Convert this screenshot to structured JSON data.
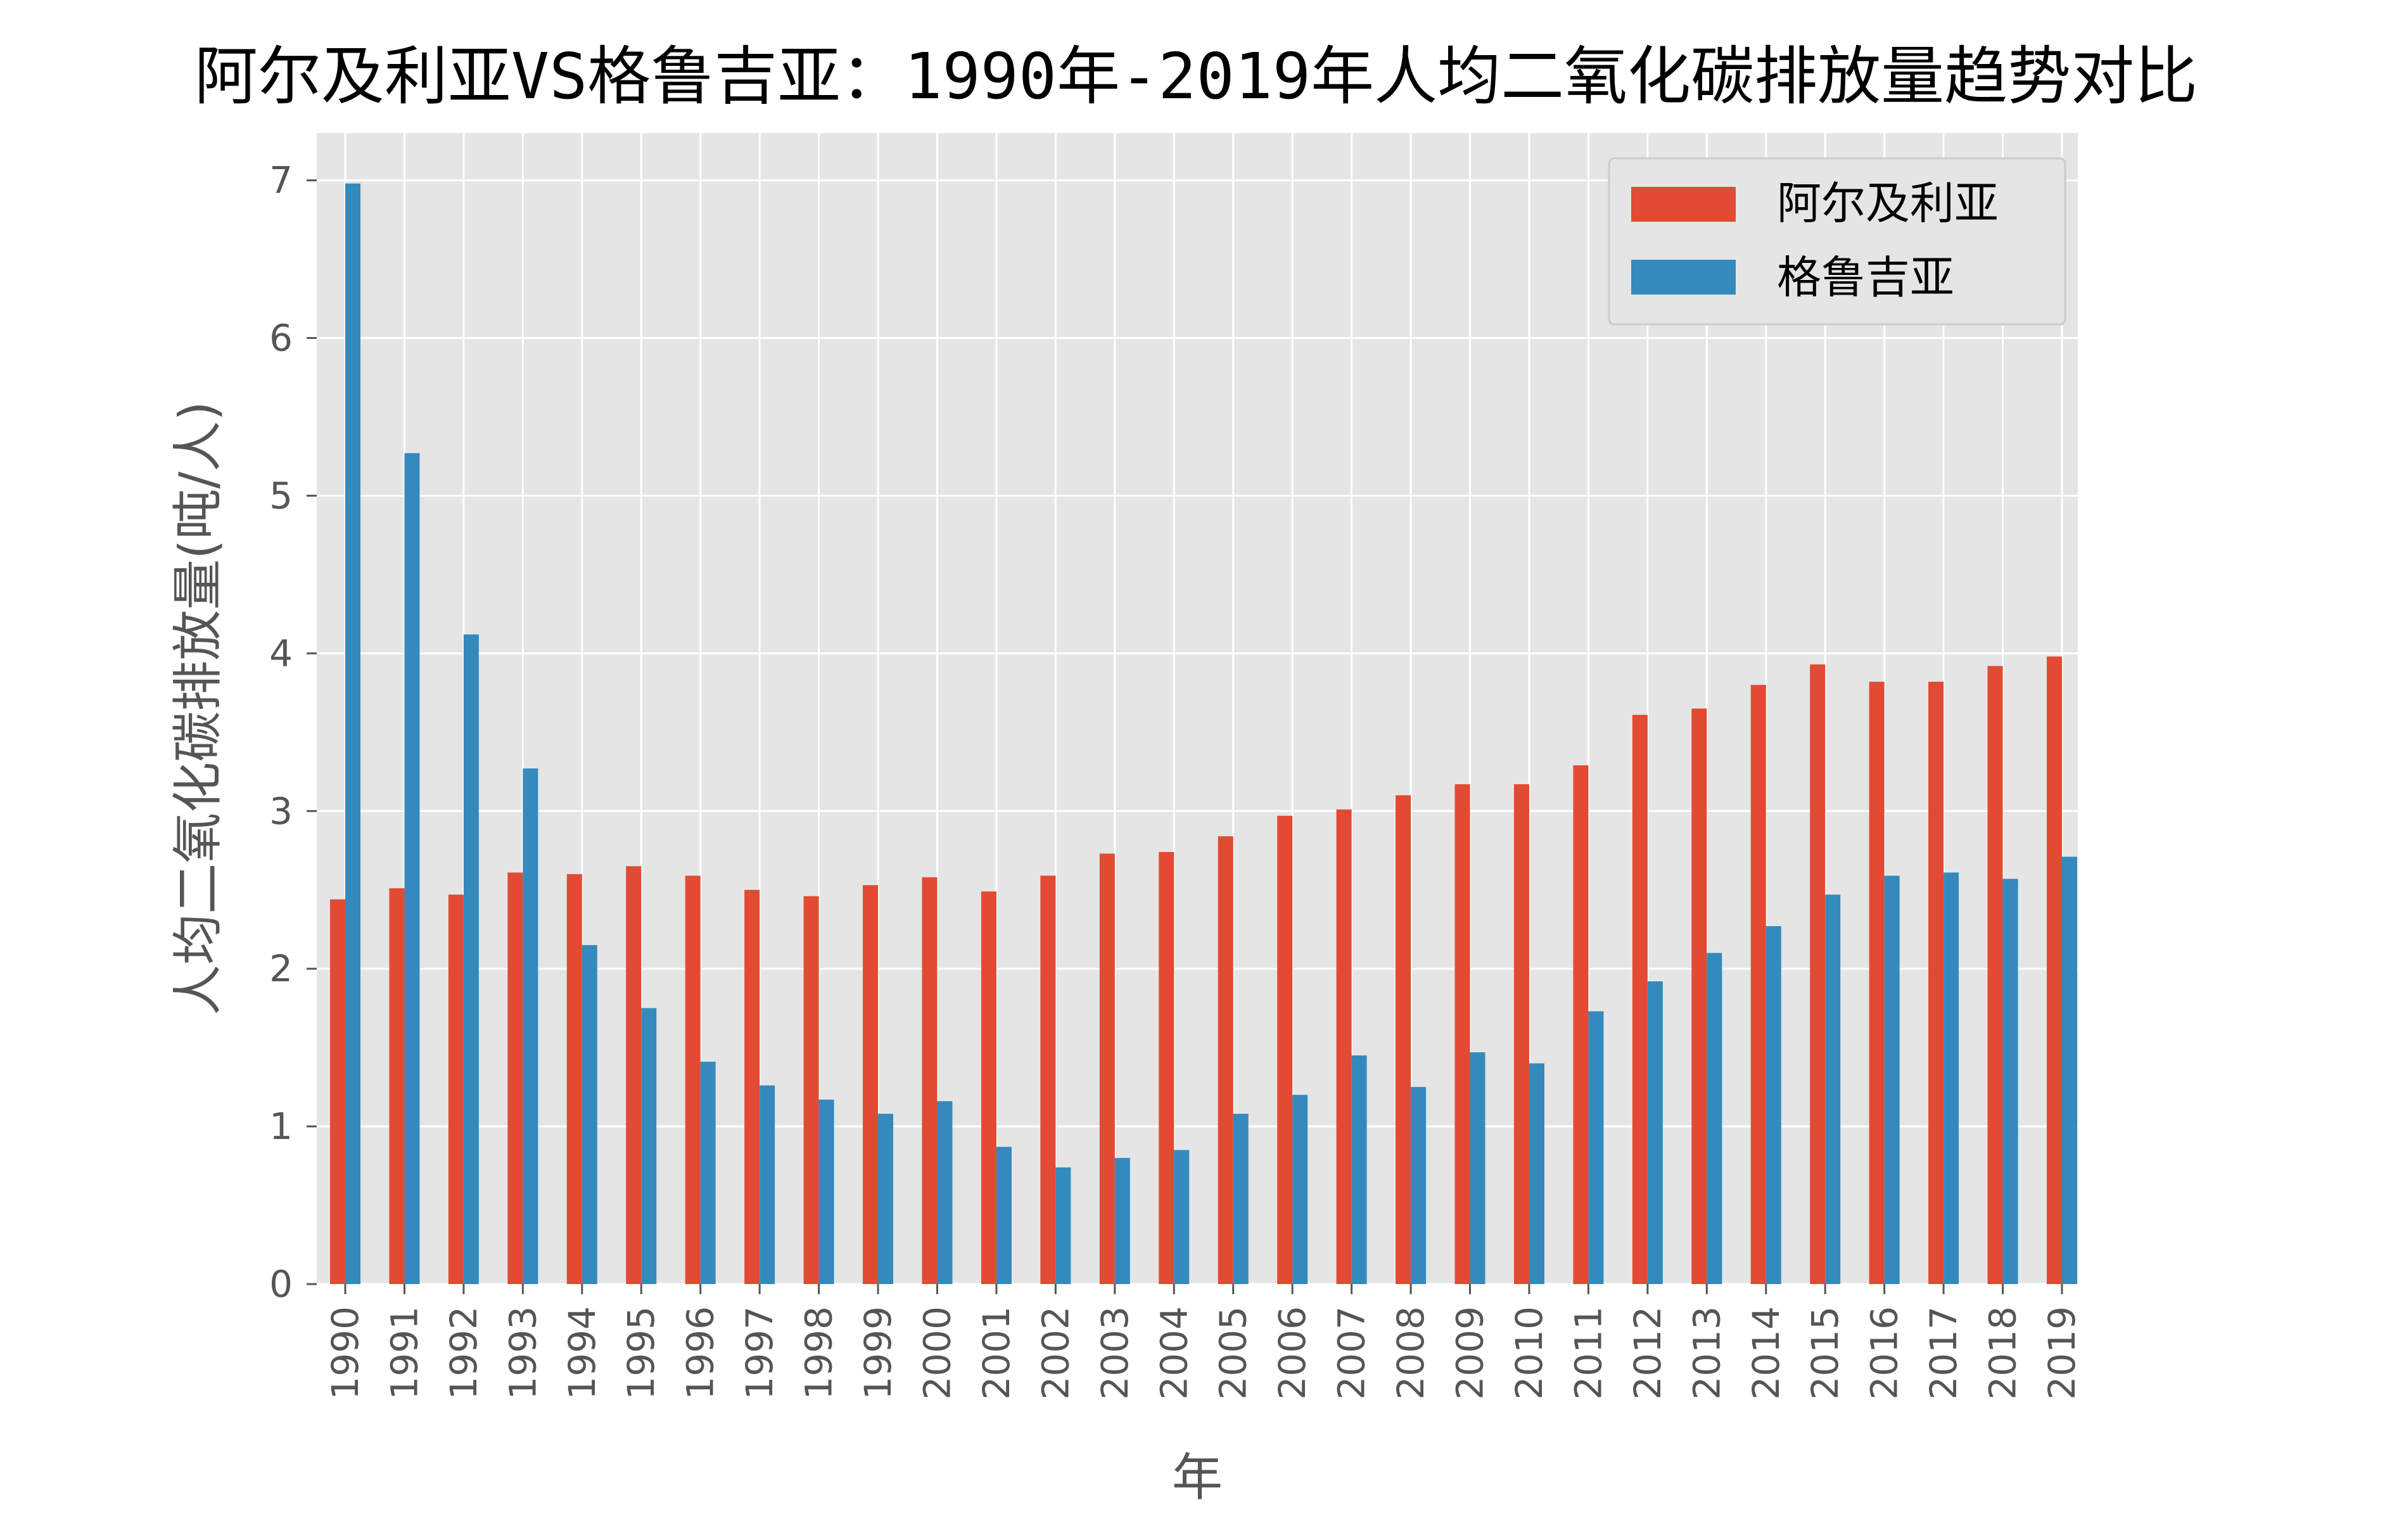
{
  "chart_data": {
    "type": "bar",
    "title": "阿尔及利亚VS格鲁吉亚：1990年-2019年人均二氧化碳排放量趋势对比",
    "xlabel": "年",
    "ylabel": "人均二氧化碳排放量(吨/人)",
    "ylim": [
      0,
      7.3
    ],
    "yticks": [
      "0",
      "1",
      "2",
      "3",
      "4",
      "5",
      "6",
      "7"
    ],
    "grid": true,
    "legend_position": "top-right",
    "categories": [
      "1990",
      "1991",
      "1992",
      "1993",
      "1994",
      "1995",
      "1996",
      "1997",
      "1998",
      "1999",
      "2000",
      "2001",
      "2002",
      "2003",
      "2004",
      "2005",
      "2006",
      "2007",
      "2008",
      "2009",
      "2010",
      "2011",
      "2012",
      "2013",
      "2014",
      "2015",
      "2016",
      "2017",
      "2018",
      "2019"
    ],
    "series": [
      {
        "name": "阿尔及利亚",
        "color": "#E24A33",
        "values": [
          2.44,
          2.51,
          2.47,
          2.61,
          2.6,
          2.65,
          2.59,
          2.5,
          2.46,
          2.53,
          2.58,
          2.49,
          2.59,
          2.73,
          2.74,
          2.84,
          2.97,
          3.01,
          3.1,
          3.17,
          3.17,
          3.29,
          3.61,
          3.65,
          3.8,
          3.93,
          3.82,
          3.82,
          3.92,
          3.98
        ]
      },
      {
        "name": "格鲁吉亚",
        "color": "#348ABD",
        "values": [
          6.98,
          5.27,
          4.12,
          3.27,
          2.15,
          1.75,
          1.41,
          1.26,
          1.17,
          1.08,
          1.16,
          0.87,
          0.74,
          0.8,
          0.85,
          1.08,
          1.2,
          1.45,
          1.25,
          1.47,
          1.4,
          1.73,
          1.92,
          2.1,
          2.27,
          2.47,
          2.59,
          2.61,
          2.57,
          2.71
        ]
      }
    ]
  }
}
